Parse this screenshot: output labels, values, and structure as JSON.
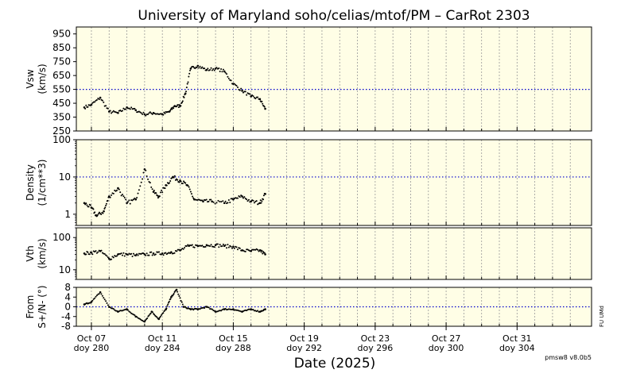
{
  "title": "University of Maryland  soho/celias/mtof/PM – CarRot 2303",
  "xlabel": "Date (2025)",
  "version": "pmsw8 v8.0b5",
  "side_label": "FU UMd",
  "colors": {
    "panel_bg": "#fffee6",
    "reference": "#0000cc",
    "points": "#000000",
    "grid": "#999999"
  },
  "x_ticks": [
    {
      "date": "Oct 07",
      "doy": "doy 280"
    },
    {
      "date": "Oct 11",
      "doy": "doy 284"
    },
    {
      "date": "Oct 15",
      "doy": "doy 288"
    },
    {
      "date": "Oct 19",
      "doy": "doy 292"
    },
    {
      "date": "Oct 23",
      "doy": "doy 296"
    },
    {
      "date": "Oct 27",
      "doy": "doy 300"
    },
    {
      "date": "Oct 31",
      "doy": "doy 304"
    }
  ],
  "chart_data": [
    {
      "type": "scatter",
      "ylabel": "Vsw",
      "yunit": "(km/s)",
      "scale": "linear",
      "ylim": [
        250,
        1000
      ],
      "yticks": [
        "950",
        "850",
        "750",
        "650",
        "550",
        "450",
        "350",
        "250"
      ],
      "reference_line": 550,
      "series": [
        {
          "x": [
            279.6,
            280.0,
            280.5,
            281.0,
            281.5,
            282.0,
            282.5,
            283.0,
            283.5,
            284.0,
            284.4,
            284.7,
            285.0,
            285.3,
            285.6,
            286.0,
            286.5,
            287.0,
            287.5,
            288.0,
            288.5,
            289.0,
            289.5,
            289.8
          ],
          "y": [
            420,
            440,
            490,
            390,
            380,
            420,
            400,
            370,
            380,
            370,
            390,
            430,
            430,
            520,
            700,
            720,
            690,
            700,
            680,
            590,
            540,
            500,
            480,
            410
          ]
        }
      ]
    },
    {
      "type": "scatter",
      "ylabel": "Density",
      "yunit": "(1/cm**3)",
      "scale": "log",
      "ylim": [
        0.5,
        100
      ],
      "yticks": [
        "100",
        "10",
        "1"
      ],
      "reference_line": 10,
      "series": [
        {
          "x": [
            279.6,
            280.0,
            280.3,
            280.7,
            281.0,
            281.5,
            282.0,
            282.5,
            283.0,
            283.5,
            283.8,
            284.2,
            284.6,
            285.0,
            285.4,
            285.8,
            286.3,
            286.8,
            287.5,
            288.0,
            288.5,
            289.0,
            289.5,
            289.8
          ],
          "y": [
            2,
            1.5,
            0.9,
            1.2,
            3,
            5,
            2,
            2.5,
            16,
            4,
            3,
            6,
            10,
            8,
            6,
            2.5,
            2.2,
            2.2,
            2,
            2.5,
            3,
            2.2,
            2,
            3.5
          ]
        }
      ]
    },
    {
      "type": "scatter",
      "ylabel": "Vth",
      "yunit": "(km/s)",
      "scale": "log",
      "ylim": [
        5,
        200
      ],
      "yticks": [
        "100",
        "10"
      ],
      "series": [
        {
          "x": [
            279.6,
            280.0,
            280.5,
            281.0,
            281.5,
            282.0,
            282.5,
            283.0,
            283.5,
            284.0,
            284.5,
            285.0,
            285.5,
            286.0,
            286.5,
            287.0,
            287.5,
            288.0,
            288.5,
            289.0,
            289.5,
            289.8
          ],
          "y": [
            32,
            34,
            38,
            22,
            30,
            30,
            28,
            30,
            32,
            32,
            35,
            40,
            55,
            55,
            58,
            58,
            55,
            52,
            40,
            38,
            40,
            30
          ]
        }
      ]
    },
    {
      "type": "scatter",
      "ylabel": "From",
      "yunit": "S+/N- (°)",
      "scale": "linear",
      "ylim": [
        -8,
        8
      ],
      "yticks": [
        "8",
        "4",
        "0",
        "-4",
        "-8"
      ],
      "reference_line": 0,
      "series": [
        {
          "x": [
            279.6,
            280.0,
            280.5,
            281.0,
            281.5,
            282.0,
            282.5,
            283.0,
            283.4,
            283.8,
            284.2,
            284.5,
            284.8,
            285.2,
            285.6,
            286.0,
            286.5,
            287.0,
            287.5,
            288.0,
            288.5,
            289.0,
            289.5,
            289.8
          ],
          "y": [
            1,
            2,
            6,
            0,
            -2,
            -1,
            -4,
            -6,
            -2,
            -5,
            -1,
            4,
            7,
            0,
            -1,
            -1,
            0,
            -2,
            -1,
            -1,
            -2,
            -1,
            -2,
            -1
          ]
        }
      ]
    }
  ]
}
